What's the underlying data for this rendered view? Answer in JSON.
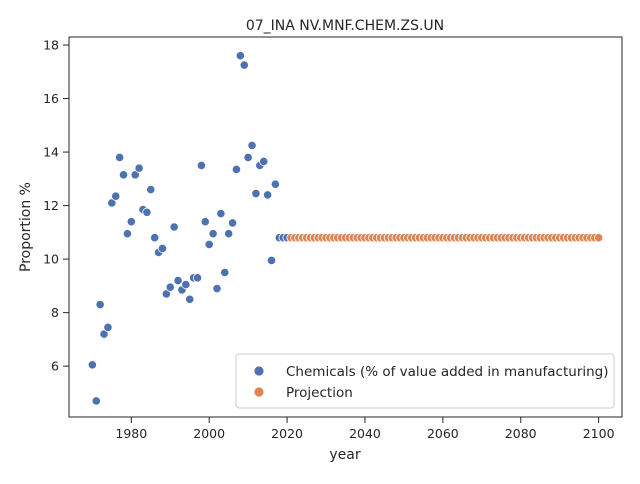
{
  "chart_data": {
    "type": "scatter",
    "title": "07_INA NV.MNF.CHEM.ZS.UN",
    "xlabel": "year",
    "ylabel": "Proportion %",
    "xlim": [
      1964,
      2106
    ],
    "ylim": [
      4.1,
      18.3
    ],
    "xticks": [
      1980,
      2000,
      2020,
      2040,
      2060,
      2080,
      2100
    ],
    "yticks": [
      6,
      8,
      10,
      12,
      14,
      16,
      18
    ],
    "legend_position": "lower right",
    "series": [
      {
        "name": "Chemicals (% of value added in manufacturing)",
        "color": "#4c72b0",
        "x": [
          1970,
          1971,
          1972,
          1973,
          1974,
          1975,
          1976,
          1977,
          1978,
          1979,
          1980,
          1981,
          1982,
          1983,
          1984,
          1985,
          1986,
          1987,
          1988,
          1989,
          1990,
          1991,
          1992,
          1993,
          1994,
          1995,
          1996,
          1997,
          1998,
          1999,
          2000,
          2001,
          2002,
          2003,
          2004,
          2005,
          2006,
          2007,
          2008,
          2009,
          2010,
          2011,
          2012,
          2013,
          2014,
          2015,
          2016,
          2017,
          2018,
          2019,
          2020
        ],
        "y": [
          6.05,
          4.7,
          8.3,
          7.2,
          7.45,
          12.1,
          12.35,
          13.8,
          13.15,
          10.95,
          11.4,
          13.15,
          13.4,
          11.85,
          11.75,
          12.6,
          10.8,
          10.25,
          10.4,
          8.7,
          8.95,
          11.2,
          9.2,
          8.85,
          9.05,
          8.5,
          9.3,
          9.3,
          13.5,
          11.4,
          10.55,
          10.95,
          8.9,
          11.7,
          9.5,
          10.95,
          11.35,
          13.35,
          17.6,
          17.25,
          13.8,
          14.25,
          12.45,
          13.5,
          13.65,
          12.4,
          9.95,
          12.8,
          10.8,
          10.8,
          10.8
        ]
      },
      {
        "name": "Projection",
        "color": "#dd8452",
        "x_start": 2021,
        "x_end": 2100,
        "value": 10.8
      }
    ]
  }
}
